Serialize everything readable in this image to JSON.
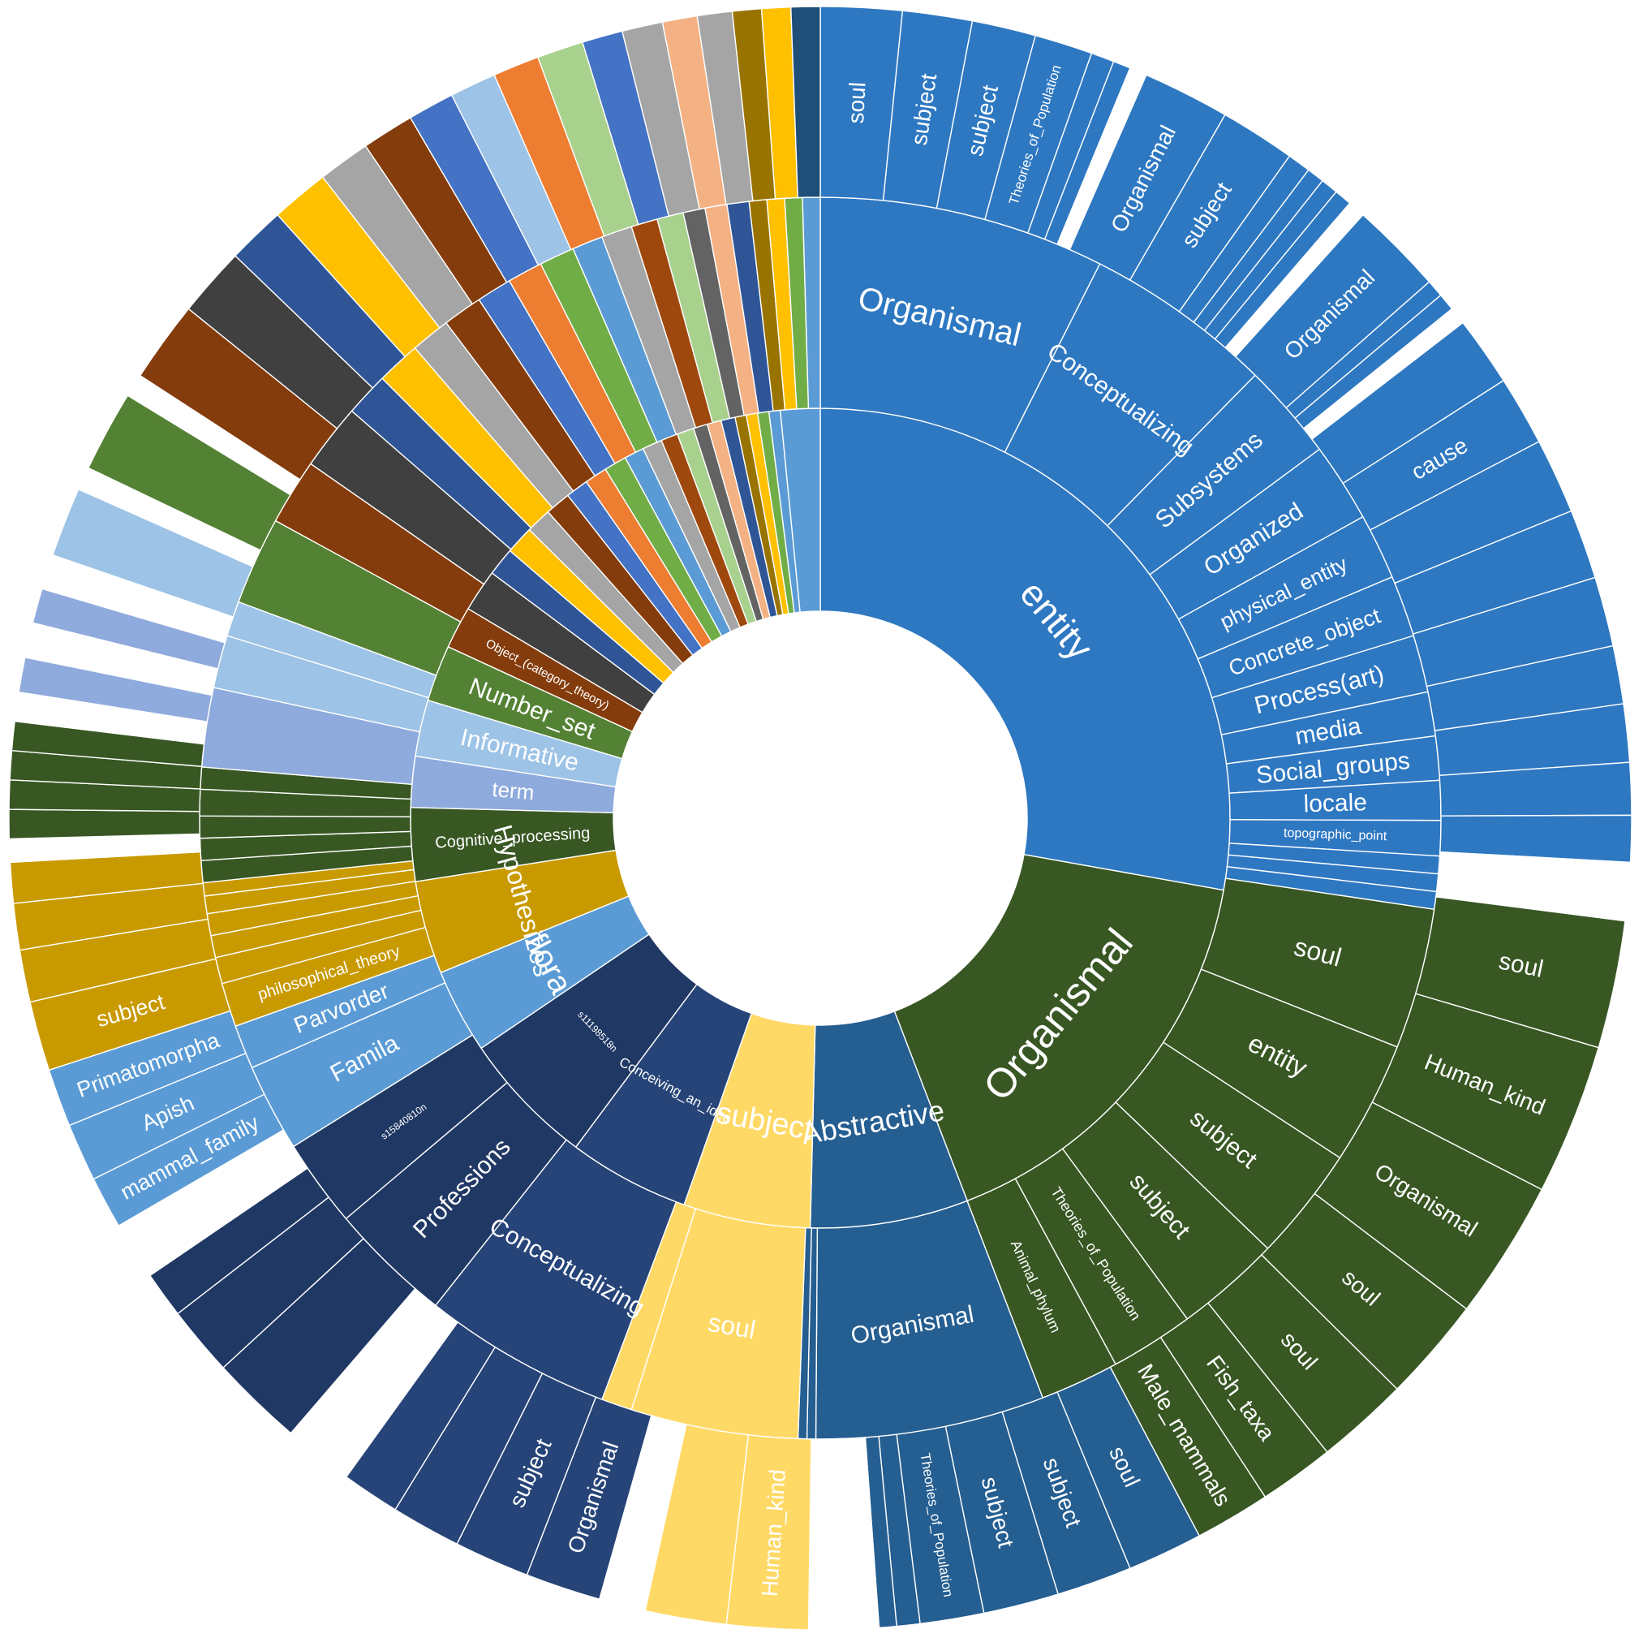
{
  "chart_data": {
    "type": "sunburst",
    "title": "",
    "unit": "share of full circle (1.0 = 360°), clockwise from top",
    "colors": {
      "entity": "#2e78c2",
      "organismal": "#385723",
      "abstractive": "#255e91",
      "subject_yellow": "#ffd966",
      "navy": "#264478",
      "dark_navy": "#203864",
      "light_blue": "#5b9bd5",
      "gold": "#c99a00",
      "green": "#548235",
      "periwinkle": "#8faadc",
      "sky": "#9dc3e6",
      "brown": "#843c0c",
      "gray_dark": "#404040",
      "blue2": "#2f5597",
      "yellow": "#ffc000",
      "gray": "#a5a5a5",
      "orange": "#ed7d31",
      "lightgreen": "#a9d18e"
    },
    "ring1": [
      {
        "label": "entity",
        "value": 0.25,
        "color": "#2e78c2",
        "labelSize": 46
      },
      {
        "label": "Organismal",
        "value": 0.147,
        "color": "#385723",
        "labelSize": 50
      },
      {
        "label": "Abstractive",
        "value": 0.056,
        "color": "#255e91",
        "labelSize": 36
      },
      {
        "label": "subject",
        "value": 0.045,
        "color": "#ffd966",
        "labelSize": 38
      },
      {
        "label": "Conceiving_an_idea",
        "value": 0.043,
        "color": "#264478",
        "labelSize": 17
      },
      {
        "label": "s11198518n",
        "value": 0.048,
        "color": "#203864",
        "labelSize": 12
      },
      {
        "label": "flora",
        "value": 0.03,
        "color": "#5b9bd5",
        "labelSize": 40
      },
      {
        "label": "Hypothesizes",
        "value": 0.033,
        "color": "#c99a00",
        "labelSize": 32
      },
      {
        "label": "Cognitive_processing",
        "value": 0.026,
        "color": "#385723",
        "labelSize": 20
      },
      {
        "label": "term",
        "value": 0.018,
        "color": "#8faadc",
        "labelSize": 26
      },
      {
        "label": "Informative",
        "value": 0.02,
        "color": "#9dc3e6",
        "labelSize": 30
      },
      {
        "label": "Number_set",
        "value": 0.02,
        "color": "#548235",
        "labelSize": 30
      },
      {
        "label": "Object_(category_theory)",
        "value": 0.015,
        "color": "#843c0c",
        "labelSize": 15
      },
      {
        "label": "",
        "value": 0.015,
        "color": "#404040"
      },
      {
        "label": "",
        "value": 0.01,
        "color": "#2f5597"
      },
      {
        "label": "",
        "value": 0.01,
        "color": "#ffc000"
      },
      {
        "label": "",
        "value": 0.009,
        "color": "#a5a5a5"
      },
      {
        "label": "",
        "value": 0.009,
        "color": "#843c0c"
      },
      {
        "label": "",
        "value": 0.008,
        "color": "#4472c4"
      },
      {
        "label": "",
        "value": 0.008,
        "color": "#ed7d31"
      },
      {
        "label": "",
        "value": 0.008,
        "color": "#70ad47"
      },
      {
        "label": "",
        "value": 0.007,
        "color": "#5b9bd5"
      },
      {
        "label": "",
        "value": 0.007,
        "color": "#a5a5a5"
      },
      {
        "label": "",
        "value": 0.006,
        "color": "#9e480e"
      },
      {
        "label": "",
        "value": 0.006,
        "color": "#a9d18e"
      },
      {
        "label": "",
        "value": 0.005,
        "color": "#636363"
      },
      {
        "label": "",
        "value": 0.005,
        "color": "#f4b183"
      },
      {
        "label": "",
        "value": 0.005,
        "color": "#2f5597"
      },
      {
        "label": "",
        "value": 0.004,
        "color": "#997300"
      },
      {
        "label": "",
        "value": 0.004,
        "color": "#ffc000"
      },
      {
        "label": "",
        "value": 0.004,
        "color": "#70ad47"
      },
      {
        "label": "",
        "value": 0.004,
        "color": "#5b9bd5"
      },
      {
        "label": "",
        "value": 0.014,
        "color": "#5b9bd5"
      }
    ],
    "ring2": [
      {
        "label": "Organismal",
        "value": 0.065,
        "color": "#2e78c2",
        "labelSize": 40
      },
      {
        "label": "Conceptualizing",
        "value": 0.043,
        "color": "#2e78c2",
        "labelSize": 30
      },
      {
        "label": "Subsystems",
        "value": 0.022,
        "color": "#2e78c2",
        "labelSize": 30
      },
      {
        "label": "Organized",
        "value": 0.018,
        "color": "#2e78c2",
        "labelSize": 30
      },
      {
        "label": "physical_entity",
        "value": 0.015,
        "color": "#2e78c2",
        "labelSize": 26
      },
      {
        "label": "Concrete_object",
        "value": 0.014,
        "color": "#2e78c2",
        "labelSize": 27
      },
      {
        "label": "Process(art)",
        "value": 0.013,
        "color": "#2e78c2",
        "labelSize": 30
      },
      {
        "label": "media",
        "value": 0.01,
        "color": "#2e78c2",
        "labelSize": 30
      },
      {
        "label": "Social_groups",
        "value": 0.01,
        "color": "#2e78c2",
        "labelSize": 30
      },
      {
        "label": "locale",
        "value": 0.009,
        "color": "#2e78c2",
        "labelSize": 30
      },
      {
        "label": "topographic_point",
        "value": 0.008,
        "color": "#2e78c2",
        "labelSize": 16
      },
      {
        "label": "",
        "value": 0.004,
        "color": "#2e78c2"
      },
      {
        "label": "",
        "value": 0.004,
        "color": "#2e78c2"
      },
      {
        "label": "",
        "value": 0.004,
        "color": "#2e78c2"
      },
      {
        "label": "soul",
        "value": 0.032,
        "color": "#385723",
        "labelSize": 32
      },
      {
        "label": "entity",
        "value": 0.028,
        "color": "#385723",
        "labelSize": 32
      },
      {
        "label": "subject",
        "value": 0.026,
        "color": "#385723",
        "labelSize": 30
      },
      {
        "label": "subject",
        "value": 0.024,
        "color": "#385723",
        "labelSize": 30
      },
      {
        "label": "Theories_of_Population",
        "value": 0.019,
        "color": "#385723",
        "labelSize": 18
      },
      {
        "label": "Animal_phylum",
        "value": 0.018,
        "color": "#385723",
        "labelSize": 18
      },
      {
        "label": "Organismal",
        "value": 0.052,
        "color": "#255e91",
        "labelSize": 30
      },
      {
        "label": "",
        "value": 0.002,
        "color": "#255e91"
      },
      {
        "label": "",
        "value": 0.002,
        "color": "#255e91"
      },
      {
        "label": "soul",
        "value": 0.038,
        "color": "#ffd966",
        "labelSize": 32
      },
      {
        "label": "",
        "value": 0.007,
        "color": "#ffd966"
      },
      {
        "label": "Conceptualizing",
        "value": 0.043,
        "color": "#264478",
        "labelSize": 30
      },
      {
        "label": "Professions",
        "value": 0.028,
        "color": "#203864",
        "labelSize": 30
      },
      {
        "label": "s15840810n",
        "value": 0.02,
        "color": "#203864",
        "labelSize": 12
      },
      {
        "label": "Famila",
        "value": 0.02,
        "color": "#5b9bd5",
        "labelSize": 30
      },
      {
        "label": "Parvorder",
        "value": 0.01,
        "color": "#5b9bd5",
        "labelSize": 28
      },
      {
        "label": "philosophical_theory",
        "value": 0.01,
        "color": "#c99a00",
        "labelSize": 20
      },
      {
        "label": "",
        "value": 0.006,
        "color": "#c99a00"
      },
      {
        "label": "",
        "value": 0.005,
        "color": "#c99a00"
      },
      {
        "label": "",
        "value": 0.005,
        "color": "#c99a00"
      },
      {
        "label": "",
        "value": 0.004,
        "color": "#c99a00"
      },
      {
        "label": "",
        "value": 0.003,
        "color": "#c99a00"
      },
      {
        "label": "",
        "value": 0.005,
        "color": "#385723"
      },
      {
        "label": "",
        "value": 0.005,
        "color": "#385723"
      },
      {
        "label": "",
        "value": 0.005,
        "color": "#385723"
      },
      {
        "label": "",
        "value": 0.006,
        "color": "#385723"
      },
      {
        "label": "",
        "value": 0.005,
        "color": "#385723"
      },
      {
        "label": "",
        "value": 0.018,
        "color": "#8faadc"
      },
      {
        "label": "",
        "value": 0.012,
        "color": "#9dc3e6"
      },
      {
        "label": "",
        "value": 0.008,
        "color": "#9dc3e6"
      },
      {
        "label": "",
        "value": 0.02,
        "color": "#548235"
      },
      {
        "label": "",
        "value": 0.015,
        "color": "#843c0c"
      },
      {
        "label": "",
        "value": 0.015,
        "color": "#404040"
      },
      {
        "label": "",
        "value": 0.01,
        "color": "#2f5597"
      },
      {
        "label": "",
        "value": 0.01,
        "color": "#ffc000"
      },
      {
        "label": "",
        "value": 0.009,
        "color": "#a5a5a5"
      },
      {
        "label": "",
        "value": 0.009,
        "color": "#843c0c"
      },
      {
        "label": "",
        "value": 0.008,
        "color": "#4472c4"
      },
      {
        "label": "",
        "value": 0.008,
        "color": "#ed7d31"
      },
      {
        "label": "",
        "value": 0.008,
        "color": "#70ad47"
      },
      {
        "label": "",
        "value": 0.007,
        "color": "#5b9bd5"
      },
      {
        "label": "",
        "value": 0.007,
        "color": "#a5a5a5"
      },
      {
        "label": "",
        "value": 0.006,
        "color": "#9e480e"
      },
      {
        "label": "",
        "value": 0.006,
        "color": "#a9d18e"
      },
      {
        "label": "",
        "value": 0.005,
        "color": "#636363"
      },
      {
        "label": "",
        "value": 0.005,
        "color": "#f4b183"
      },
      {
        "label": "",
        "value": 0.005,
        "color": "#2f5597"
      },
      {
        "label": "",
        "value": 0.004,
        "color": "#997300"
      },
      {
        "label": "",
        "value": 0.004,
        "color": "#ffc000"
      },
      {
        "label": "",
        "value": 0.004,
        "color": "#70ad47"
      },
      {
        "label": "",
        "value": 0.004,
        "color": "#5b9bd5"
      }
    ],
    "ring3": [
      {
        "label": "soul",
        "value": 0.014,
        "color": "#2e78c2",
        "labelSize": 28
      },
      {
        "label": "subject",
        "value": 0.012,
        "color": "#2e78c2",
        "labelSize": 28
      },
      {
        "label": "subject",
        "value": 0.011,
        "color": "#2e78c2",
        "labelSize": 28
      },
      {
        "label": "Theories_of_Population",
        "value": 0.01,
        "color": "#2e78c2",
        "labelSize": 17
      },
      {
        "label": "",
        "value": 0.004,
        "color": "#2e78c2"
      },
      {
        "label": "",
        "value": 0.003,
        "color": "#2e78c2"
      },
      {
        "label": "",
        "value": 0.003,
        "color": "#ffffff"
      },
      {
        "label": "Organismal",
        "value": 0.015,
        "color": "#2e78c2",
        "labelSize": 28
      },
      {
        "label": "subject",
        "value": 0.013,
        "color": "#2e78c2",
        "labelSize": 28
      },
      {
        "label": "",
        "value": 0.004,
        "color": "#2e78c2"
      },
      {
        "label": "",
        "value": 0.003,
        "color": "#2e78c2"
      },
      {
        "label": "",
        "value": 0.003,
        "color": "#2e78c2"
      },
      {
        "label": "",
        "value": 0.003,
        "color": "#2e78c2"
      },
      {
        "label": "",
        "value": 0.003,
        "color": "#ffffff"
      },
      {
        "label": "Organismal",
        "value": 0.016,
        "color": "#2e78c2",
        "labelSize": 28
      },
      {
        "label": "",
        "value": 0.003,
        "color": "#2e78c2"
      },
      {
        "label": "",
        "value": 0.003,
        "color": "#2e78c2"
      },
      {
        "label": "",
        "value": 0.003,
        "color": "#ffffff"
      },
      {
        "label": "",
        "value": 0.012,
        "color": "#2e78c2"
      },
      {
        "label": "cause",
        "value": 0.012,
        "color": "#2e78c2",
        "labelSize": 28
      },
      {
        "label": "",
        "value": 0.013,
        "color": "#2e78c2"
      },
      {
        "label": "",
        "value": 0.012,
        "color": "#2e78c2"
      },
      {
        "label": "",
        "value": 0.012,
        "color": "#2e78c2"
      },
      {
        "label": "",
        "value": 0.01,
        "color": "#2e78c2"
      },
      {
        "label": "",
        "value": 0.01,
        "color": "#2e78c2"
      },
      {
        "label": "",
        "value": 0.009,
        "color": "#2e78c2"
      },
      {
        "label": "",
        "value": 0.008,
        "color": "#2e78c2"
      },
      {
        "label": "",
        "value": 0.01,
        "color": "#ffffff"
      },
      {
        "label": "soul",
        "value": 0.022,
        "color": "#385723",
        "labelSize": 30
      },
      {
        "label": "Human_kind",
        "value": 0.026,
        "color": "#385723",
        "labelSize": 28
      },
      {
        "label": "Organismal",
        "value": 0.024,
        "color": "#385723",
        "labelSize": 28
      },
      {
        "label": "soul",
        "value": 0.018,
        "color": "#385723",
        "labelSize": 28
      },
      {
        "label": "soul",
        "value": 0.016,
        "color": "#385723",
        "labelSize": 28
      },
      {
        "label": "Fish_taxa",
        "value": 0.013,
        "color": "#385723",
        "labelSize": 28
      },
      {
        "label": "Male_mammals",
        "value": 0.013,
        "color": "#385723",
        "labelSize": 28
      },
      {
        "label": "soul",
        "value": 0.013,
        "color": "#255e91",
        "labelSize": 28
      },
      {
        "label": "subject",
        "value": 0.013,
        "color": "#255e91",
        "labelSize": 28
      },
      {
        "label": "subject",
        "value": 0.013,
        "color": "#255e91",
        "labelSize": 28
      },
      {
        "label": "Theories_of_Population",
        "value": 0.011,
        "color": "#255e91",
        "labelSize": 17
      },
      {
        "label": "",
        "value": 0.004,
        "color": "#255e91"
      },
      {
        "label": "",
        "value": 0.003,
        "color": "#255e91"
      },
      {
        "label": "",
        "value": 0.012,
        "color": "#ffffff"
      },
      {
        "label": "Human_kind",
        "value": 0.014,
        "color": "#ffd966",
        "labelSize": 28
      },
      {
        "label": "",
        "value": 0.014,
        "color": "#ffd966"
      },
      {
        "label": "",
        "value": 0.008,
        "color": "#ffffff"
      },
      {
        "label": "Organismal",
        "value": 0.013,
        "color": "#264478",
        "labelSize": 28
      },
      {
        "label": "subject",
        "value": 0.013,
        "color": "#264478",
        "labelSize": 28
      },
      {
        "label": "",
        "value": 0.012,
        "color": "#264478"
      },
      {
        "label": "",
        "value": 0.01,
        "color": "#264478"
      },
      {
        "label": "",
        "value": 0.012,
        "color": "#ffffff"
      },
      {
        "label": "",
        "value": 0.016,
        "color": "#203864"
      },
      {
        "label": "",
        "value": 0.012,
        "color": "#203864"
      },
      {
        "label": "",
        "value": 0.008,
        "color": "#203864"
      },
      {
        "label": "",
        "value": 0.01,
        "color": "#ffffff"
      },
      {
        "label": "mammal_family",
        "value": 0.009,
        "color": "#5b9bd5",
        "labelSize": 27
      },
      {
        "label": "Apish",
        "value": 0.01,
        "color": "#5b9bd5",
        "labelSize": 27
      },
      {
        "label": "Primatomorpha",
        "value": 0.01,
        "color": "#5b9bd5",
        "labelSize": 27
      },
      {
        "label": "subject",
        "value": 0.012,
        "color": "#c99a00",
        "labelSize": 27
      },
      {
        "label": "",
        "value": 0.009,
        "color": "#c99a00"
      },
      {
        "label": "",
        "value": 0.008,
        "color": "#c99a00"
      },
      {
        "label": "",
        "value": 0.007,
        "color": "#c99a00"
      },
      {
        "label": "",
        "value": 0.004,
        "color": "#ffffff"
      },
      {
        "label": "",
        "value": 0.005,
        "color": "#385723"
      },
      {
        "label": "",
        "value": 0.005,
        "color": "#385723"
      },
      {
        "label": "",
        "value": 0.005,
        "color": "#385723"
      },
      {
        "label": "",
        "value": 0.005,
        "color": "#385723"
      },
      {
        "label": "",
        "value": 0.005,
        "color": "#ffffff"
      },
      {
        "label": "",
        "value": 0.006,
        "color": "#8faadc"
      },
      {
        "label": "",
        "value": 0.006,
        "color": "#ffffff"
      },
      {
        "label": "",
        "value": 0.006,
        "color": "#8faadc"
      },
      {
        "label": "",
        "value": 0.006,
        "color": "#ffffff"
      },
      {
        "label": "",
        "value": 0.012,
        "color": "#9dc3e6"
      },
      {
        "label": "",
        "value": 0.004,
        "color": "#ffffff"
      },
      {
        "label": "",
        "value": 0.014,
        "color": "#548235"
      },
      {
        "label": "",
        "value": 0.004,
        "color": "#ffffff"
      },
      {
        "label": "",
        "value": 0.014,
        "color": "#843c0c"
      },
      {
        "label": "",
        "value": 0.012,
        "color": "#404040"
      },
      {
        "label": "",
        "value": 0.01,
        "color": "#2f5597"
      },
      {
        "label": "",
        "value": 0.01,
        "color": "#ffc000"
      },
      {
        "label": "",
        "value": 0.009,
        "color": "#a5a5a5"
      },
      {
        "label": "",
        "value": 0.009,
        "color": "#843c0c"
      },
      {
        "label": "",
        "value": 0.008,
        "color": "#4472c4"
      },
      {
        "label": "",
        "value": 0.008,
        "color": "#9dc3e6"
      },
      {
        "label": "",
        "value": 0.008,
        "color": "#ed7d31"
      },
      {
        "label": "",
        "value": 0.008,
        "color": "#a9d18e"
      },
      {
        "label": "",
        "value": 0.007,
        "color": "#4472c4"
      },
      {
        "label": "",
        "value": 0.007,
        "color": "#a5a5a5"
      },
      {
        "label": "",
        "value": 0.006,
        "color": "#f4b183"
      },
      {
        "label": "",
        "value": 0.006,
        "color": "#a5a5a5"
      },
      {
        "label": "",
        "value": 0.005,
        "color": "#997300"
      },
      {
        "label": "",
        "value": 0.005,
        "color": "#ffc000"
      },
      {
        "label": "",
        "value": 0.005,
        "color": "#1f4e79"
      }
    ]
  }
}
